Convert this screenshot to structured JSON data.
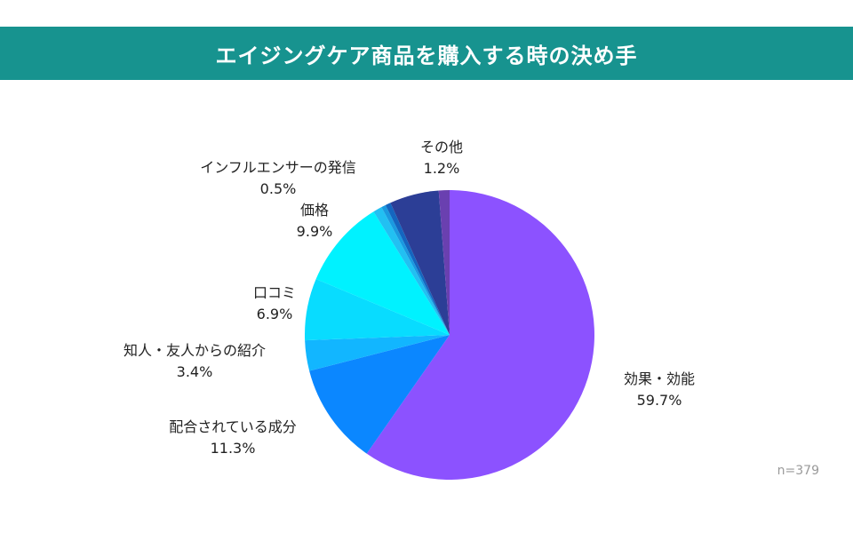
{
  "header": {
    "title": "エイジングケア商品を購入する時の決め手"
  },
  "note": "n=379",
  "chart_data": {
    "type": "pie",
    "title": "エイジングケア商品を購入する時の決め手",
    "start": "12 o'clock",
    "direction": "clockwise",
    "slices": [
      {
        "label": "効果・効能",
        "value": 59.7,
        "value_label": "59.7%",
        "color": "#8c52ff"
      },
      {
        "label": "配合されている成分",
        "value": 11.3,
        "value_label": "11.3%",
        "color": "#0b87ff"
      },
      {
        "label": "知人・友人からの紹介",
        "value": 3.4,
        "value_label": "3.4%",
        "color": "#12b6ff"
      },
      {
        "label": "口コミ",
        "value": 6.9,
        "value_label": "6.9%",
        "color": "#08dcff"
      },
      {
        "label": "価格",
        "value": 9.9,
        "value_label": "9.9%",
        "color": "#00f2ff"
      },
      {
        "label": "",
        "value": 1.0,
        "value_label": "",
        "color": "#22c0f2"
      },
      {
        "label": "インフルエンサーの発信",
        "value": 0.5,
        "value_label": "0.5%",
        "color": "#1a9ae0"
      },
      {
        "label": "",
        "value": 0.6,
        "value_label": "",
        "color": "#1466c0"
      },
      {
        "label": "",
        "value": 5.5,
        "value_label": "",
        "color": "#2c3e96"
      },
      {
        "label": "その他",
        "value": 1.2,
        "value_label": "1.2%",
        "color": "#6a40b0"
      }
    ]
  }
}
